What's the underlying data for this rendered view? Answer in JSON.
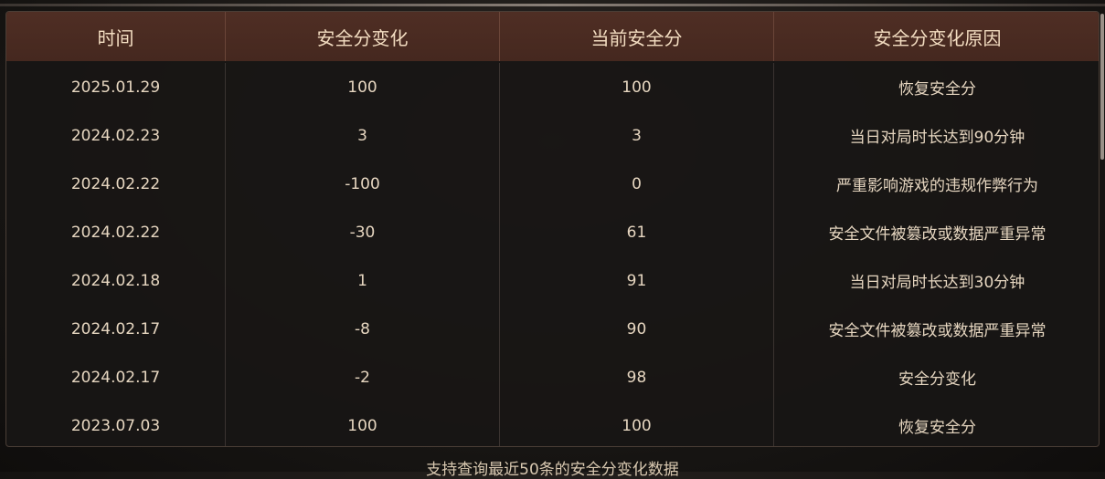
{
  "table": {
    "columns": [
      "时间",
      "安全分变化",
      "当前安全分",
      "安全分变化原因"
    ],
    "rows": [
      [
        "2025.01.29",
        100,
        100,
        "恢复安全分"
      ],
      [
        "2024.02.23",
        3,
        3,
        "当日对局时长达到90分钟"
      ],
      [
        "2024.02.22",
        -100,
        0,
        "严重影响游戏的违规作弊行为"
      ],
      [
        "2024.02.22",
        -30,
        61,
        "安全文件被篡改或数据严重异常"
      ],
      [
        "2024.02.18",
        1,
        91,
        "当日对局时长达到30分钟"
      ],
      [
        "2024.02.17",
        -8,
        90,
        "安全文件被篡改或数据严重异常"
      ],
      [
        "2024.02.17",
        -2,
        98,
        "安全分变化"
      ],
      [
        "2023.07.03",
        100,
        100,
        "恢复安全分"
      ]
    ]
  },
  "footer": {
    "note": "支持查询最近50条的安全分变化数据"
  }
}
